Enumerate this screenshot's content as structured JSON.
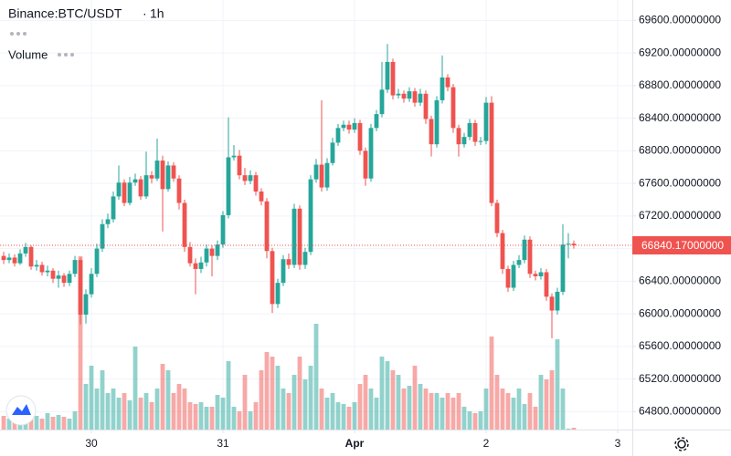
{
  "chart_data": {
    "type": "candlestick",
    "title": "Binance:BTC/USDT",
    "interval": "1h",
    "volume_label": "Volume",
    "up_color": "#26a69a",
    "down_color": "#ef5350",
    "grid": true,
    "open": [
      66710,
      66660,
      66690,
      66620,
      66740,
      66820,
      66580,
      66600,
      66510,
      66530,
      66430,
      66470,
      66380,
      66490,
      66660,
      65990,
      66240,
      66490,
      66800,
      67100,
      67160,
      67440,
      67610,
      67360,
      67610,
      67650,
      67440,
      67700,
      67660,
      67880,
      67530,
      67820,
      67660,
      67360,
      66820,
      66620,
      66550,
      66630,
      66800,
      66710,
      66850,
      67210,
      67920,
      67940,
      67700,
      67630,
      67700,
      67500,
      67380,
      66770,
      66120,
      66380,
      66670,
      66600,
      67290,
      66600,
      66760,
      67650,
      67830,
      67550,
      67850,
      68100,
      68280,
      68320,
      68260,
      68340,
      68000,
      67660,
      68280,
      68450,
      68750,
      69090,
      68680,
      68700,
      68640,
      68730,
      68590,
      68700,
      68390,
      68080,
      68620,
      68900,
      68780,
      68280,
      68080,
      68170,
      68340,
      68110,
      68120,
      68590,
      67360,
      66990,
      66550,
      66320,
      66600,
      66660,
      66910,
      66490,
      66460,
      66510,
      66210,
      66040,
      66270,
      66850,
      66860
    ],
    "high": [
      66760,
      66740,
      66730,
      66790,
      66870,
      66840,
      66660,
      66640,
      66590,
      66560,
      66530,
      66500,
      66530,
      66710,
      66690,
      66300,
      66560,
      66860,
      67160,
      67230,
      67500,
      67820,
      67650,
      67680,
      67720,
      67690,
      67990,
      67750,
      68150,
      67940,
      67870,
      67860,
      67700,
      67400,
      66880,
      66680,
      66700,
      66850,
      66840,
      66900,
      67260,
      68410,
      68070,
      68010,
      67790,
      67760,
      67740,
      67540,
      67420,
      66810,
      66430,
      66720,
      66740,
      67350,
      67330,
      66810,
      67700,
      67900,
      68620,
      67910,
      68160,
      68330,
      68370,
      68370,
      68400,
      68380,
      68040,
      68330,
      68500,
      69090,
      69310,
      69130,
      68760,
      68740,
      68780,
      68770,
      68760,
      68740,
      68430,
      68670,
      69170,
      68940,
      68820,
      68320,
      68220,
      68390,
      68380,
      68170,
      68660,
      68670,
      67400,
      67030,
      66590,
      66650,
      66720,
      66960,
      66950,
      66530,
      66560,
      66550,
      66250,
      66320,
      67100,
      66990,
      66900
    ],
    "low": [
      66610,
      66620,
      66580,
      66600,
      66700,
      66540,
      66530,
      66470,
      66460,
      66380,
      66320,
      66330,
      66340,
      66450,
      65870,
      65880,
      66200,
      66450,
      66760,
      67050,
      67120,
      67400,
      67320,
      67330,
      67570,
      67400,
      67410,
      67600,
      67630,
      67010,
      67500,
      67620,
      67280,
      66760,
      66580,
      66240,
      66500,
      66580,
      66460,
      66660,
      66810,
      67170,
      67880,
      67650,
      67580,
      67590,
      67450,
      67330,
      66680,
      66010,
      66070,
      66340,
      66550,
      66560,
      66540,
      66550,
      66720,
      67610,
      67500,
      67510,
      67820,
      68060,
      68240,
      68210,
      68220,
      67950,
      67570,
      67620,
      68240,
      68410,
      68710,
      68630,
      68640,
      68590,
      68600,
      68540,
      68550,
      68330,
      67930,
      68040,
      68580,
      68730,
      68220,
      67930,
      68040,
      68130,
      68060,
      68070,
      68080,
      67320,
      66940,
      66490,
      66270,
      66280,
      66560,
      66620,
      66440,
      66410,
      66420,
      66160,
      65700,
      65990,
      66230,
      66680,
      66800
    ],
    "close": [
      66660,
      66690,
      66620,
      66740,
      66820,
      66580,
      66600,
      66510,
      66530,
      66430,
      66470,
      66380,
      66490,
      66660,
      65990,
      66240,
      66490,
      66800,
      67100,
      67160,
      67440,
      67610,
      67360,
      67610,
      67650,
      67440,
      67700,
      67660,
      67880,
      67530,
      67820,
      67660,
      67360,
      66820,
      66620,
      66550,
      66630,
      66800,
      66710,
      66850,
      67210,
      67920,
      67940,
      67700,
      67630,
      67700,
      67500,
      67380,
      66770,
      66120,
      66380,
      66670,
      66600,
      67290,
      66600,
      66760,
      67650,
      67830,
      67550,
      67850,
      68100,
      68280,
      68320,
      68260,
      68340,
      68000,
      67660,
      68280,
      68450,
      68750,
      69090,
      68680,
      68700,
      68640,
      68730,
      68590,
      68700,
      68390,
      68080,
      68620,
      68900,
      68780,
      68280,
      68080,
      68170,
      68340,
      68110,
      68120,
      68590,
      67360,
      66990,
      66550,
      66320,
      66600,
      66660,
      66910,
      66490,
      66460,
      66510,
      66210,
      66040,
      66270,
      66850,
      66860,
      66840.17
    ],
    "volume": [
      15,
      12,
      18,
      10,
      14,
      20,
      15,
      12,
      18,
      14,
      16,
      14,
      12,
      20,
      190,
      50,
      70,
      45,
      65,
      40,
      45,
      35,
      40,
      32,
      91,
      35,
      40,
      30,
      45,
      72,
      65,
      40,
      50,
      45,
      30,
      28,
      30,
      25,
      25,
      38,
      35,
      75,
      25,
      20,
      60,
      20,
      30,
      65,
      85,
      80,
      70,
      45,
      40,
      60,
      80,
      55,
      70,
      116,
      45,
      35,
      40,
      30,
      28,
      25,
      30,
      50,
      60,
      45,
      35,
      80,
      75,
      65,
      60,
      45,
      48,
      70,
      50,
      45,
      40,
      40,
      35,
      40,
      35,
      40,
      25,
      20,
      18,
      20,
      45,
      102,
      60,
      45,
      40,
      35,
      45,
      28,
      40,
      25,
      60,
      55,
      65,
      99,
      45,
      1,
      2
    ],
    "last_price": {
      "value": 66840.17,
      "label": "66840.17000000"
    },
    "ylim": [
      64580,
      69850
    ],
    "yticks": [
      {
        "value": 64800,
        "label": "64800.00000000"
      },
      {
        "value": 65200,
        "label": "65200.00000000"
      },
      {
        "value": 65600,
        "label": "65600.00000000"
      },
      {
        "value": 66000,
        "label": "66000.00000000"
      },
      {
        "value": 66400,
        "label": "66400.00000000"
      },
      {
        "value": 66800,
        "label": "66800.00000000"
      },
      {
        "value": 67200,
        "label": "67200.00000000"
      },
      {
        "value": 67600,
        "label": "67600.00000000"
      },
      {
        "value": 68000,
        "label": "68000.00000000"
      },
      {
        "value": 68400,
        "label": "68400.00000000"
      },
      {
        "value": 68800,
        "label": "68800.00000000"
      },
      {
        "value": 69200,
        "label": "69200.00000000"
      },
      {
        "value": 69600,
        "label": "69600.00000000"
      }
    ],
    "xlim": [
      -0.67,
      114.67
    ],
    "xticks": [
      {
        "value": 16,
        "label": "30"
      },
      {
        "value": 40,
        "label": "31"
      },
      {
        "value": 64,
        "label": "Apr"
      },
      {
        "value": 88,
        "label": "2"
      },
      {
        "value": 112,
        "label": "3"
      }
    ]
  }
}
